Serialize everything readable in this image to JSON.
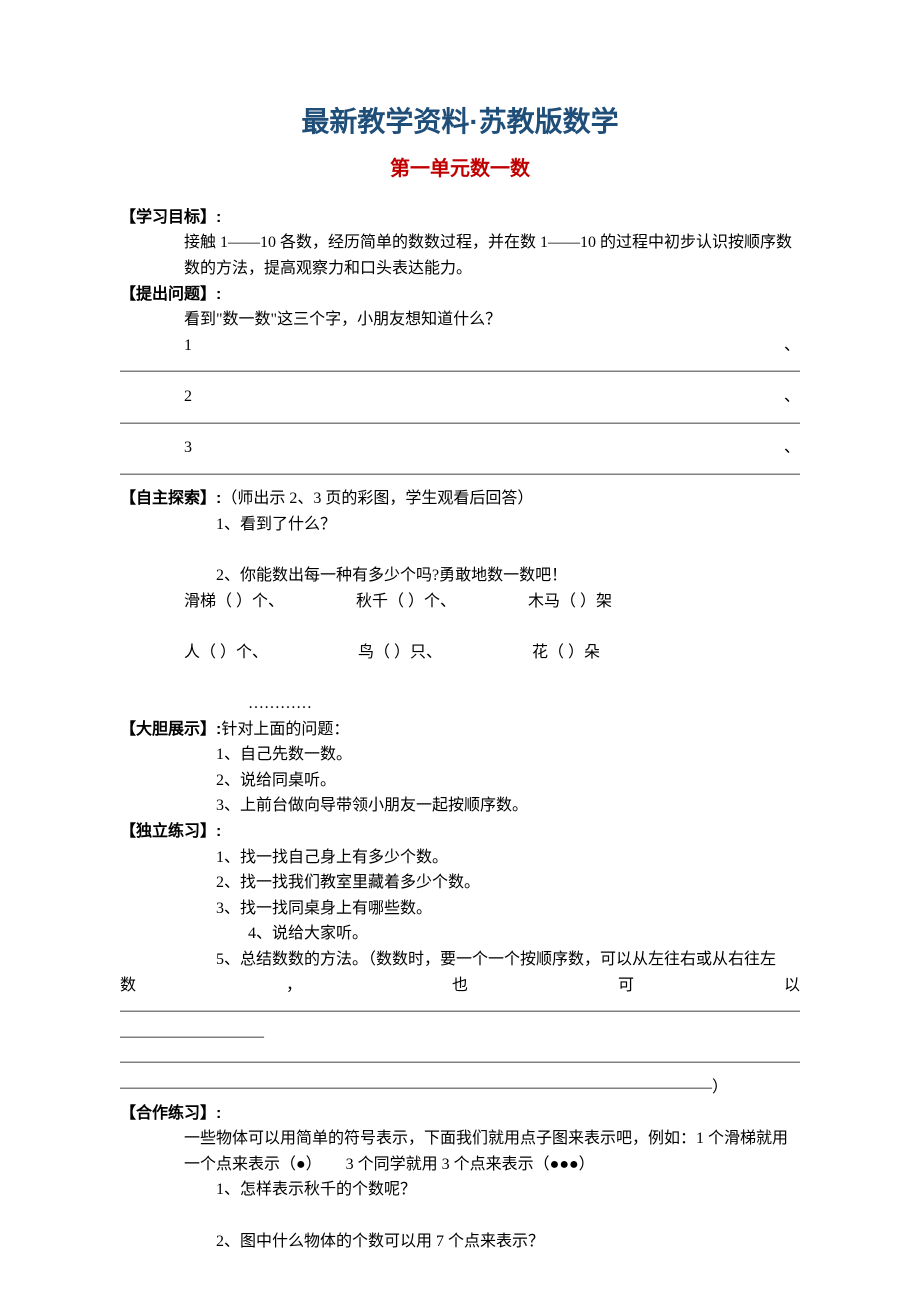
{
  "titles": {
    "main": "最新教学资料·苏教版数学",
    "sub": "第一单元数一数"
  },
  "colors": {
    "main_title": "#1f4e79",
    "sub_title": "#c00000",
    "text": "#000000",
    "background": "#ffffff"
  },
  "sections": {
    "goal": {
      "label": "【学习目标】:",
      "text": "接触 1——10 各数，经历简单的数数过程，并在数 1——10 的过程中初步认识按顺序数数的方法，提高观察力和口头表达能力。"
    },
    "question": {
      "label": "【提出问题】:",
      "prompt": "看到\"数一数\"这三个字，小朋友想知道什么？",
      "items": [
        "1",
        "2",
        "3"
      ],
      "trailing": "、",
      "dash_end": "？"
    },
    "explore": {
      "label": "【自主探索】:",
      "note": "（师出示 2、3 页的彩图，学生观看后回答）",
      "q1": "1、看到了什么？",
      "q2": "2、你能数出每一种有多少个吗?勇敢地数一数吧！",
      "row1": {
        "a": "滑梯（ ）个、",
        "b": "秋千（ ）个、",
        "c": "木马（ ）架"
      },
      "row2": {
        "a": "人（ ）个、",
        "b": "鸟（ ）只、",
        "c": "花（ ）朵"
      },
      "ellipsis": "…………"
    },
    "show": {
      "label": "【大胆展示】:",
      "intro": "针对上面的问题：",
      "items": [
        "1、自己先数一数。",
        "2、说给同桌听。",
        "3、上前台做向导带领小朋友一起按顺序数。"
      ]
    },
    "solo": {
      "label": "【独立练习】:",
      "items": [
        "1、找一找自己身上有多少个数。",
        "2、找一找我们教室里藏着多少个数。",
        "3、找一找同桌身上有哪些数。",
        "4、说给大家听。"
      ],
      "fifth_prefix": "5、总结数数的方法。（数数时，要一个一个按顺序数，可以从左往右或从右往左",
      "fifth_line_words": [
        "数",
        "，",
        "也",
        "可",
        "以"
      ],
      "dash_short": "—————————",
      "dash_end": "—————————————————————————————————————）"
    },
    "coop": {
      "label": "【合作练习】:",
      "intro": "一些物体可以用简单的符号表示，下面我们就用点子图来表示吧，例如：1 个滑梯就用一个点来表示（●）　　3 个同学就用 3 个点来表示（●●●）",
      "items": [
        "1、怎样表示秋千的个数呢？",
        "2、图中什么物体的个数可以用 7 个点来表示？"
      ]
    }
  },
  "dashes": {
    "full": "————————————————————————————————————————————————————————————————————————"
  }
}
